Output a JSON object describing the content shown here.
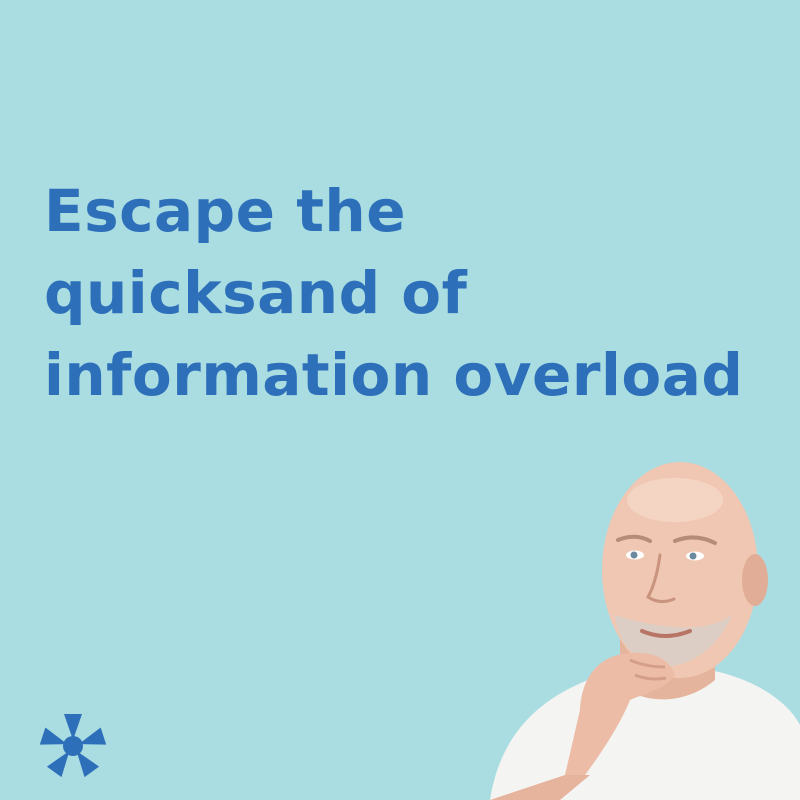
{
  "headline": {
    "line1": "Escape the",
    "line2": "quicksand of",
    "line3": "information overload"
  },
  "colors": {
    "background": "#a9dde2",
    "headline": "#2e6fba",
    "logo": "#2e6fba"
  },
  "icons": {
    "logo": "blue-flower-logo-icon",
    "portrait": "man-thinking-portrait"
  }
}
